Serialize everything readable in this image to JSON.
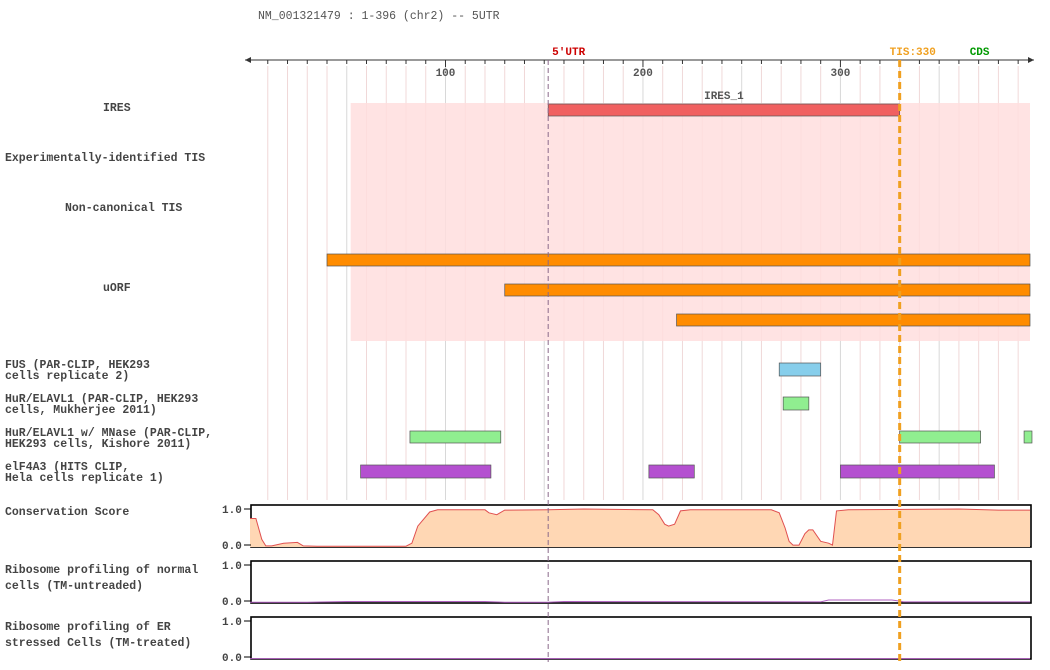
{
  "header": {
    "title": "NM_001321479 : 1-396 (chr2) -- 5UTR"
  },
  "axis": {
    "min": 1,
    "max": 396,
    "major_ticks": [
      100,
      200,
      300
    ],
    "minor_step": 10,
    "utr_label": "5'UTR",
    "utr_pos": 152,
    "tis_label": "TIS:330",
    "tis_pos": 330,
    "cds_label": "CDS",
    "cds_pos": 368
  },
  "colors": {
    "utr": "#cc0000",
    "tis": "#f0a020",
    "cds": "#009900",
    "highlight": "#ffdede",
    "ires": "#f06060",
    "uorf": "#ff8c00",
    "fus": "#87ceeb",
    "elavl": "#90ee90",
    "elf4a3": "#b450d0",
    "conservation_fill": "#ffd7b4",
    "conservation_line": "#e05050",
    "ribo_line": "#b060c0"
  },
  "highlight_region": {
    "start": 52,
    "end": 396
  },
  "tracks": {
    "ires": {
      "label": "IRES",
      "features": [
        {
          "name": "IRES_1",
          "start": 152,
          "end": 330
        }
      ]
    },
    "exp_tis": {
      "label": "Experimentally-identified TIS",
      "features": []
    },
    "noncanonical_tis": {
      "label": "Non-canonical TIS",
      "features": []
    },
    "uorf": {
      "label": "uORF",
      "features": [
        {
          "start": 40,
          "end": 396
        },
        {
          "start": 130,
          "end": 396
        },
        {
          "start": 217,
          "end": 396
        }
      ]
    },
    "fus": {
      "label_lines": [
        "FUS (PAR-CLIP, HEK293",
        "cells replicate 2)"
      ],
      "features": [
        {
          "start": 269,
          "end": 290
        }
      ]
    },
    "hur": {
      "label_lines": [
        "HuR/ELAVL1 (PAR-CLIP, HEK293",
        "cells, Mukherjee 2011)"
      ],
      "features": [
        {
          "start": 271,
          "end": 284
        }
      ]
    },
    "hur_mnase": {
      "label_lines": [
        "HuR/ELAVL1 w/ MNase (PAR-CLIP,",
        "HEK293 cells, Kishore 2011)"
      ],
      "features": [
        {
          "start": 82,
          "end": 128
        },
        {
          "start": 330,
          "end": 371
        },
        {
          "start": 393,
          "end": 397
        }
      ]
    },
    "elf4a3": {
      "label_lines": [
        "elF4A3 (HITS CLIP,",
        "Hela cells replicate 1)"
      ],
      "features": [
        {
          "start": 57,
          "end": 123
        },
        {
          "start": 203,
          "end": 226
        },
        {
          "start": 300,
          "end": 378
        }
      ]
    },
    "conservation": {
      "label": "Conservation Score",
      "ymax_label": "1.0",
      "ymin_label": "0.0",
      "points": [
        [
          1,
          0.75
        ],
        [
          4,
          0.75
        ],
        [
          7,
          0.2
        ],
        [
          9,
          0.03
        ],
        [
          12,
          0.03
        ],
        [
          18,
          0.1
        ],
        [
          25,
          0.12
        ],
        [
          28,
          0.03
        ],
        [
          35,
          0.02
        ],
        [
          60,
          0.02
        ],
        [
          80,
          0.02
        ],
        [
          83,
          0.1
        ],
        [
          86,
          0.55
        ],
        [
          92,
          0.92
        ],
        [
          96,
          0.98
        ],
        [
          120,
          0.98
        ],
        [
          122,
          0.9
        ],
        [
          126,
          0.85
        ],
        [
          130,
          0.97
        ],
        [
          152,
          0.98
        ],
        [
          170,
          1.0
        ],
        [
          205,
          0.98
        ],
        [
          208,
          0.85
        ],
        [
          211,
          0.6
        ],
        [
          213,
          0.55
        ],
        [
          216,
          0.6
        ],
        [
          219,
          0.95
        ],
        [
          224,
          0.98
        ],
        [
          265,
          0.98
        ],
        [
          269,
          0.9
        ],
        [
          272,
          0.5
        ],
        [
          274,
          0.15
        ],
        [
          276,
          0.05
        ],
        [
          279,
          0.05
        ],
        [
          282,
          0.35
        ],
        [
          284,
          0.45
        ],
        [
          286,
          0.45
        ],
        [
          290,
          0.15
        ],
        [
          294,
          0.1
        ],
        [
          296,
          0.05
        ],
        [
          298,
          0.95
        ],
        [
          304,
          0.98
        ],
        [
          360,
          1.0
        ],
        [
          380,
          0.97
        ],
        [
          396,
          0.97
        ]
      ]
    },
    "ribo_normal": {
      "label_lines": [
        "Ribosome profiling of normal",
        "cells (TM-untreaded)"
      ],
      "ymax_label": "1.0",
      "ymin_label": "0.0",
      "points": [
        [
          1,
          0.02
        ],
        [
          30,
          0.02
        ],
        [
          50,
          0.04
        ],
        [
          120,
          0.04
        ],
        [
          130,
          0.02
        ],
        [
          152,
          0.02
        ],
        [
          160,
          0.04
        ],
        [
          290,
          0.03
        ],
        [
          294,
          0.08
        ],
        [
          326,
          0.08
        ],
        [
          330,
          0.05
        ],
        [
          332,
          0.03
        ],
        [
          396,
          0.03
        ]
      ]
    },
    "ribo_er": {
      "label_lines": [
        "Ribosome profiling of ER",
        "stressed Cells (TM-treated)"
      ],
      "ymax_label": "1.0",
      "ymin_label": "0.0",
      "points": [
        [
          1,
          0.01
        ],
        [
          396,
          0.01
        ]
      ]
    }
  }
}
